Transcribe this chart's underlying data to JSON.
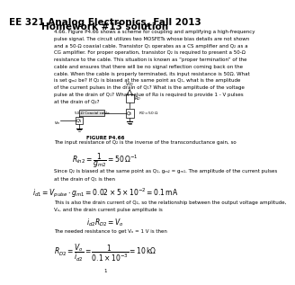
{
  "title_line1": "EE 321 Analog Electronics, Fall 2013",
  "title_line2": "Homework #13 solution",
  "body_text": [
    "4.66. Figure P4.66 shows a scheme for coupling and amplifying a high-frequency",
    "pulse signal. The circuit utilizes two MOSFETs whose bias details are not shown",
    "and a 50-Ω coaxial cable. Transistor Q₁ operates as a CS amplifier and Q₂ as a",
    "CG amplifier. For proper operation, transistor Q₂ is required to present a 50-Ω",
    "resistance to the cable. This situation is known as “proper termination” of the",
    "cable and ensures that there will be no signal reflection coming back on the",
    "cable. When the cable is properly terminated, its input resistance is 50Ω. What",
    "is set gₘ₂ be? If Q₂ is biased at the same point as Q₁, what is the amplitude",
    "of the current pulses in the drain of Q₁? What is the amplitude of the voltage",
    "pulse at the drain of Q₁? What value of Rᴅ is required to provide 1 - V pulses",
    "at the drain of Q₂?"
  ],
  "figure_label": "FIGURE P4.66",
  "solution_text1": "The input resistance of Q₂ is the inverse of the transconductance gain, so",
  "solution_text2": "Since Q₂ is biased at the same point as Q₁, gₘ₂ = gₘ₁. The amplitude of the current pulses",
  "solution_text2b": "at the drain of Q₁ is then",
  "solution_text3": "This is also the drain current of Q₂, so the relationship between the output voltage amplitude,",
  "solution_text3b": "Vₒ, and the drain current pulse amplitude is",
  "solution_text4": "The needed resistance to get Vₒ = 1 V is then",
  "page_number": "1",
  "bg_color": "#ffffff",
  "text_color": "#000000",
  "title_fontsize": 7.5,
  "body_fontsize": 4.0,
  "eq_fontsize": 5.5
}
